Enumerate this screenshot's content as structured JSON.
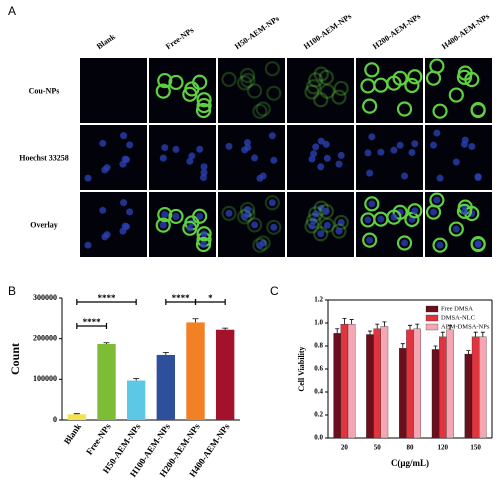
{
  "panel_labels": [
    "A",
    "B",
    "C"
  ],
  "panel_a": {
    "columns": [
      "Blank",
      "Free-NPs",
      "H50-AEM-NPs",
      "H100-AEM-NPs",
      "H200-AEM-NPs",
      "H400-AEM-NPs"
    ],
    "rows": [
      "Cou-NPs",
      "Hoechst 33258",
      "Overlay"
    ]
  },
  "chart_data": [
    {
      "type": "bar",
      "ylabel": "Count",
      "categories": [
        "Blank",
        "Free-NPs",
        "H50-AEM-NPs",
        "H100-AEM-NPs",
        "H200-AEM-NPs",
        "H400-AEM-NPs"
      ],
      "values": [
        14000,
        187000,
        97000,
        160000,
        240000,
        222000
      ],
      "errors": [
        1500,
        3000,
        5000,
        6000,
        9000,
        4000
      ],
      "colors": [
        "#f3e24a",
        "#7cbd35",
        "#5cc8e6",
        "#2e4f9c",
        "#f28025",
        "#a3122b"
      ],
      "annotations": [
        "****",
        "****",
        "****",
        "*"
      ],
      "ylim": [
        0,
        300000
      ],
      "yticks": [
        0,
        100000,
        200000,
        300000
      ]
    },
    {
      "type": "bar",
      "xlabel": "C(μg/mL)",
      "ylabel": "Cell Viability",
      "categories": [
        "20",
        "50",
        "80",
        "120",
        "150"
      ],
      "series": [
        {
          "name": "Free DMSA",
          "color": "#6b0f1c",
          "values": [
            0.91,
            0.9,
            0.78,
            0.77,
            0.73
          ],
          "errors": [
            0.04,
            0.03,
            0.04,
            0.03,
            0.03
          ]
        },
        {
          "name": "DMSA-NLC",
          "color": "#e0343e",
          "values": [
            0.99,
            0.95,
            0.94,
            0.88,
            0.88
          ],
          "errors": [
            0.05,
            0.04,
            0.04,
            0.04,
            0.04
          ]
        },
        {
          "name": "AEM-DMSA-NPs",
          "color": "#f4a7b2",
          "values": [
            0.99,
            0.97,
            0.95,
            0.94,
            0.88
          ],
          "errors": [
            0.04,
            0.04,
            0.04,
            0.04,
            0.04
          ]
        }
      ],
      "legend": "upper right",
      "ylim": [
        0,
        1.2
      ],
      "yticks": [
        {
          "value": 0,
          "label": "0.0"
        },
        0.2,
        0.4,
        0.6,
        0.8,
        {
          "value": 1,
          "label": "1.0"
        },
        1.2
      ]
    }
  ]
}
